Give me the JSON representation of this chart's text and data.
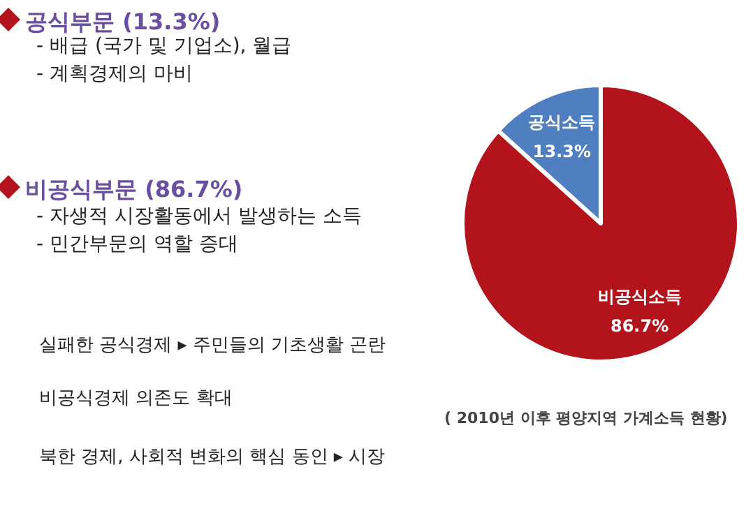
{
  "chart_data": {
    "type": "pie",
    "subtitle": "( 2010년 이후 평양지역 가계소득 현황)",
    "categories": [
      "공식소득",
      "비공식소득"
    ],
    "values": [
      13.3,
      86.7
    ],
    "colors": [
      "#4f7fc0",
      "#b3141c"
    ],
    "value_labels": [
      "13.3%",
      "86.7%"
    ],
    "legend": false,
    "annotations": [
      "공식부문 (13.3%)",
      "- 배급 (국가 및 기업소), 월급",
      "- 계획경제의 마비",
      "비공식부문 (86.7%)",
      "- 자생적 시장활동에서 발생하는 소득",
      "- 민간부문의 역할 증대",
      "실패한 공식경제 ▸ 주민들의 기초생활 곤란",
      "비공식경제 의존도 확대",
      "북한 경제, 사회적 변화의 핵심 동인 ▸ 시장"
    ]
  }
}
